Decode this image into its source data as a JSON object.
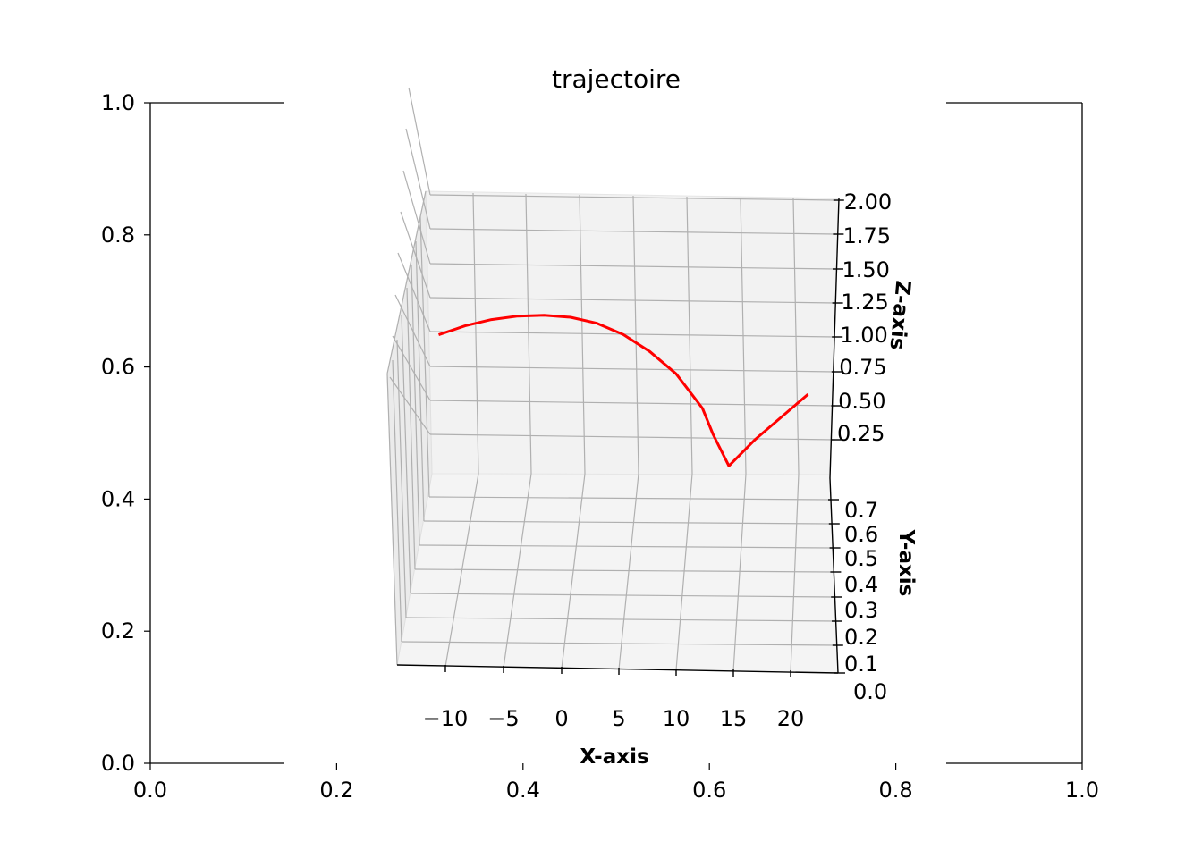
{
  "chart_data": {
    "type": "line",
    "title": "trajectoire",
    "outer_axes": {
      "xlim": [
        0.0,
        1.0
      ],
      "ylim": [
        0.0,
        1.0
      ],
      "xticks": [
        "0.0",
        "0.2",
        "0.4",
        "0.6",
        "0.8",
        "1.0"
      ],
      "yticks": [
        "0.0",
        "0.2",
        "0.4",
        "0.6",
        "0.8",
        "1.0"
      ]
    },
    "axes3d": {
      "xlabel": "X-axis",
      "ylabel": "Y-axis",
      "zlabel": "Z-axis",
      "xlim": [
        -15,
        25
      ],
      "ylim": [
        0.0,
        0.8
      ],
      "zlim": [
        0.0,
        2.0
      ],
      "xticks": [
        "−10",
        "−5",
        "0",
        "5",
        "10",
        "15",
        "20"
      ],
      "yticks": [
        "0.0",
        "0.1",
        "0.2",
        "0.3",
        "0.4",
        "0.5",
        "0.6",
        "0.7"
      ],
      "zticks": [
        "0.25",
        "0.50",
        "0.75",
        "1.00",
        "1.25",
        "1.50",
        "1.75",
        "2.00"
      ],
      "grid": true
    },
    "series": [
      {
        "color": "#ff0000",
        "x": [
          -12.5,
          -10,
          -7.5,
          -5,
          -2.5,
          0,
          2.5,
          5,
          7.5,
          10,
          12.5,
          13.5,
          15,
          17.5,
          20,
          22.5
        ],
        "z": [
          1.0,
          1.07,
          1.12,
          1.15,
          1.16,
          1.15,
          1.11,
          1.03,
          0.91,
          0.75,
          0.5,
          0.31,
          0.08,
          0.28,
          0.45,
          0.62
        ]
      }
    ]
  }
}
